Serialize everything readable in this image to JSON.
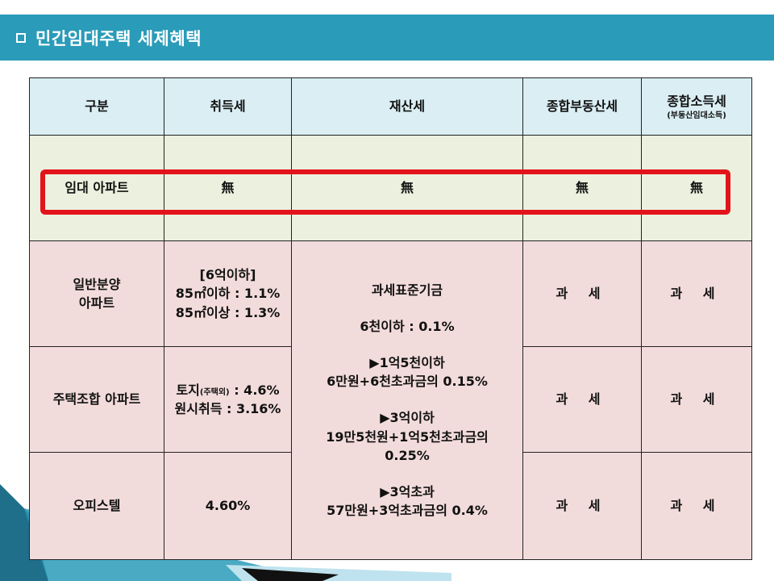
{
  "header": {
    "title": "민간임대주택 세제혜택"
  },
  "table": {
    "headers": {
      "category": "구분",
      "acquisition": "취득세",
      "property": "재산세",
      "comprehensive": "종합부동산세",
      "income": "종합소득세",
      "income_sub": "(부동산임대소득)"
    },
    "rent_row": {
      "label": "임대 아파트",
      "acquisition": "無",
      "property": "無",
      "comprehensive": "無",
      "income": "無"
    },
    "sale_row": {
      "label_line1": "일반분양",
      "label_line2": "아파트",
      "acq_line1": "[6억이하]",
      "acq_line2": "85㎡이하 : 1.1%",
      "acq_line3": "85㎡이상 : 1.3%",
      "comprehensive": "과 세",
      "income": "과 세"
    },
    "union_row": {
      "label": "주택조합 아파트",
      "acq_line1_a": "토지",
      "acq_line1_b": "(주택외)",
      "acq_line1_c": " : 4.6%",
      "acq_line2": "원시취득 : 3.16%",
      "comprehensive": "과 세",
      "income": "과 세"
    },
    "office_row": {
      "label": "오피스텔",
      "acquisition": "4.60%",
      "comprehensive": "과 세",
      "income": "과 세"
    },
    "property_tax": {
      "line1": "과세표준기금",
      "line2": "6천이하 : 0.1%",
      "line3": "▶1억5천이하",
      "line4": "6만원+6천초과금의 0.15%",
      "line5": "▶3억이하",
      "line6": "19만5천원+1억5천초과금의",
      "line7": "0.25%",
      "line8": "▶3억초과",
      "line9": "57만원+3억초과금의 0.4%"
    }
  }
}
